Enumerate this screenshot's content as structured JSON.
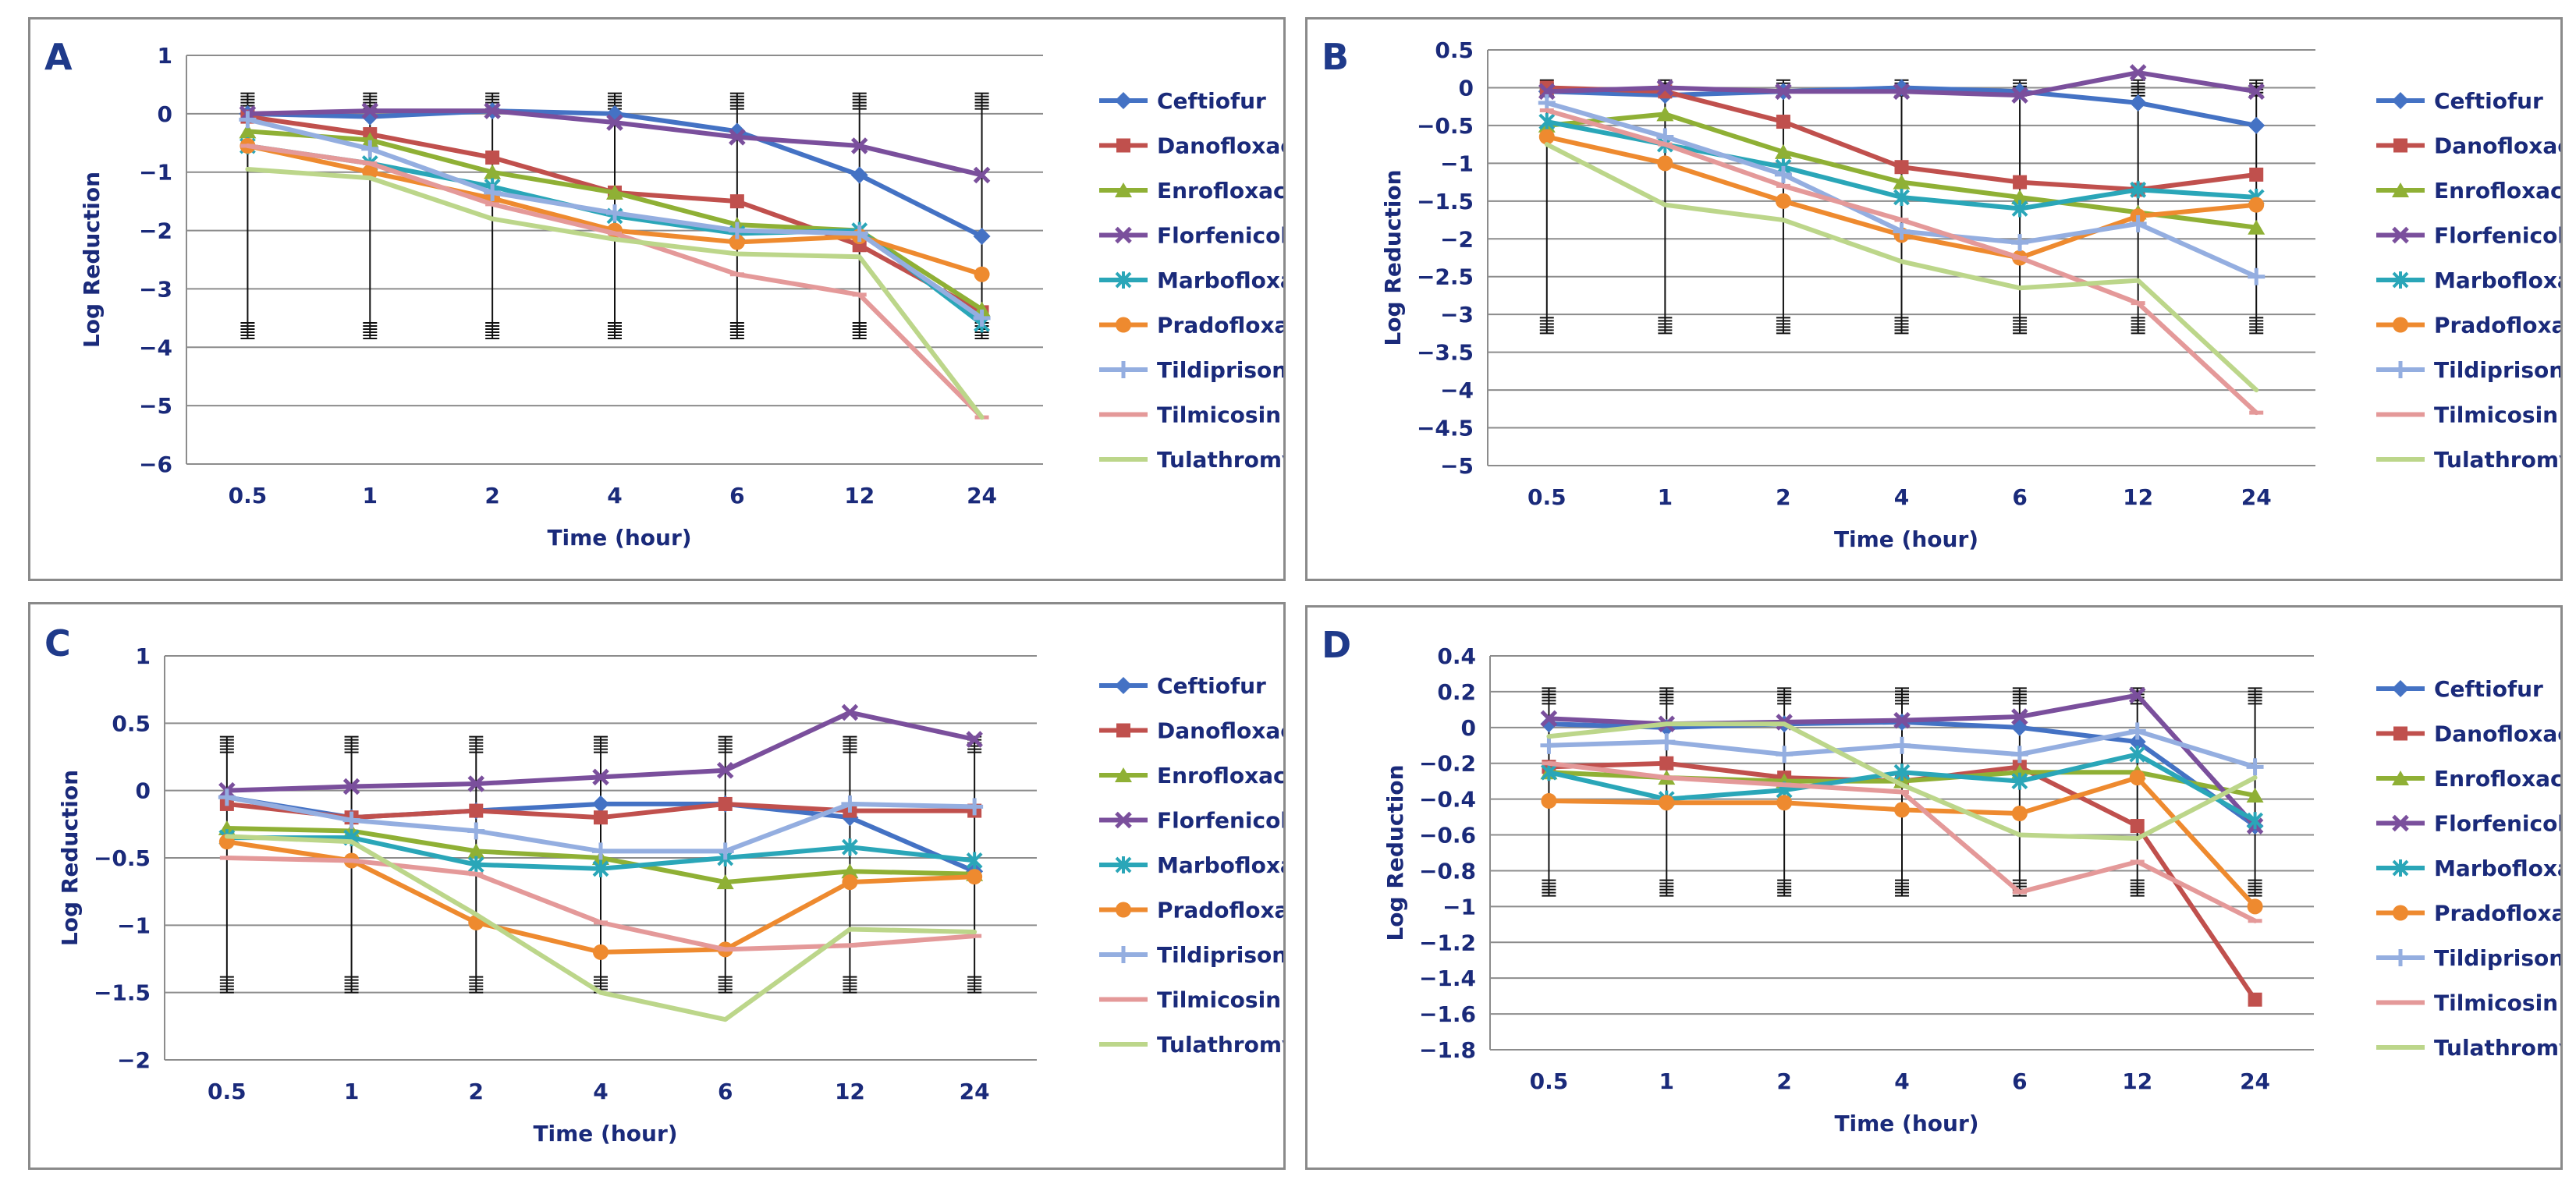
{
  "colors": {
    "Ceftiofur": "#4472c4",
    "Danofloxacin": "#c0504d",
    "Enrofloxacin": "#8fb035",
    "Florfenicol": "#7a4f9c",
    "Marbofloxacin": "#2aa6b8",
    "Pradofloxacin": "#ee8a2f",
    "Tildiprison": "#94aee0",
    "Tilmicosin": "#e49999",
    "Tulathromycin": "#bcd68a"
  },
  "markers": {
    "Ceftiofur": "diamond",
    "Danofloxacin": "square",
    "Enrofloxacin": "triangle",
    "Florfenicol": "x",
    "Marbofloxacin": "star",
    "Pradofloxacin": "circle",
    "Tildiprison": "plus",
    "Tilmicosin": "dash",
    "Tulathromycin": "none"
  },
  "chart_data": [
    {
      "panel": "A",
      "type": "line",
      "xlabel": "Time (hour)",
      "ylabel": "Log Reduction",
      "categories": [
        "0.5",
        "1",
        "2",
        "4",
        "6",
        "12",
        "24"
      ],
      "ylim": [
        -6,
        1
      ],
      "yticks": [
        1,
        0,
        -1,
        -2,
        -3,
        -4,
        -5,
        -6
      ],
      "ytick_labels": [
        "1",
        "0",
        "−1",
        "−2",
        "−3",
        "−4",
        "−5",
        "−6"
      ],
      "error_bar": {
        "upper": 0.35,
        "lower": -3.85
      },
      "series": [
        {
          "name": "Ceftiofur",
          "values": [
            0.0,
            -0.05,
            0.05,
            0.0,
            -0.3,
            -1.05,
            -2.1
          ]
        },
        {
          "name": "Danofloxacin",
          "values": [
            -0.05,
            -0.35,
            -0.75,
            -1.35,
            -1.5,
            -2.25,
            -3.4
          ]
        },
        {
          "name": "Enrofloxacin",
          "values": [
            -0.3,
            -0.45,
            -1.0,
            -1.35,
            -1.9,
            -2.0,
            -3.35
          ]
        },
        {
          "name": "Florfenicol",
          "values": [
            0.0,
            0.05,
            0.05,
            -0.15,
            -0.4,
            -0.55,
            -1.05
          ]
        },
        {
          "name": "Marbofloxacin",
          "values": [
            -0.55,
            -0.85,
            -1.25,
            -1.75,
            -2.05,
            -2.0,
            -3.6
          ]
        },
        {
          "name": "Pradofloxacin",
          "values": [
            -0.55,
            -1.0,
            -1.45,
            -2.0,
            -2.2,
            -2.1,
            -2.75
          ]
        },
        {
          "name": "Tildiprison",
          "values": [
            -0.1,
            -0.6,
            -1.35,
            -1.7,
            -2.0,
            -2.05,
            -3.5
          ]
        },
        {
          "name": "Tilmicosin",
          "values": [
            -0.55,
            -0.85,
            -1.55,
            -2.05,
            -2.75,
            -3.1,
            -5.2
          ]
        },
        {
          "name": "Tulathromycin",
          "values": [
            -0.95,
            -1.1,
            -1.8,
            -2.15,
            -2.4,
            -2.45,
            -5.2
          ]
        }
      ]
    },
    {
      "panel": "B",
      "type": "line",
      "xlabel": "Time (hour)",
      "ylabel": "Log Reduction",
      "categories": [
        "0.5",
        "1",
        "2",
        "4",
        "6",
        "12",
        "24"
      ],
      "ylim": [
        -5,
        0.5
      ],
      "yticks": [
        0.5,
        0,
        -0.5,
        -1,
        -1.5,
        -2,
        -2.5,
        -3,
        -3.5,
        -4,
        -4.5,
        -5
      ],
      "ytick_labels": [
        "0.5",
        "0",
        "−0.5",
        "−1",
        "−1.5",
        "−2",
        "−2.5",
        "−3",
        "−3.5",
        "−4",
        "−4.5",
        "−5"
      ],
      "error_bar": {
        "upper": 0.1,
        "lower": -3.25
      },
      "series": [
        {
          "name": "Ceftiofur",
          "values": [
            -0.05,
            -0.1,
            -0.05,
            0.0,
            -0.05,
            -0.2,
            -0.5
          ]
        },
        {
          "name": "Danofloxacin",
          "values": [
            0.0,
            -0.05,
            -0.45,
            -1.05,
            -1.25,
            -1.35,
            -1.15
          ]
        },
        {
          "name": "Enrofloxacin",
          "values": [
            -0.5,
            -0.35,
            -0.85,
            -1.25,
            -1.45,
            -1.65,
            -1.85
          ]
        },
        {
          "name": "Florfenicol",
          "values": [
            -0.05,
            0.0,
            -0.05,
            -0.05,
            -0.1,
            0.2,
            -0.05
          ]
        },
        {
          "name": "Marbofloxacin",
          "values": [
            -0.45,
            -0.75,
            -1.05,
            -1.45,
            -1.6,
            -1.35,
            -1.45
          ]
        },
        {
          "name": "Pradofloxacin",
          "values": [
            -0.65,
            -1.0,
            -1.5,
            -1.95,
            -2.25,
            -1.7,
            -1.55
          ]
        },
        {
          "name": "Tildiprison",
          "values": [
            -0.2,
            -0.65,
            -1.15,
            -1.9,
            -2.05,
            -1.8,
            -2.5
          ]
        },
        {
          "name": "Tilmicosin",
          "values": [
            -0.3,
            -0.75,
            -1.3,
            -1.75,
            -2.25,
            -2.85,
            -4.3
          ]
        },
        {
          "name": "Tulathromycin",
          "values": [
            -0.75,
            -1.55,
            -1.75,
            -2.3,
            -2.65,
            -2.55,
            -4.0
          ]
        }
      ]
    },
    {
      "panel": "C",
      "type": "line",
      "xlabel": "Time (hour)",
      "ylabel": "Log Reduction",
      "categories": [
        "0.5",
        "1",
        "2",
        "4",
        "6",
        "12",
        "24"
      ],
      "ylim": [
        -2,
        1
      ],
      "yticks": [
        1,
        0.5,
        0,
        -0.5,
        -1,
        -1.5,
        -2
      ],
      "ytick_labels": [
        "1",
        "0.5",
        "0",
        "−0.5",
        "−1",
        "−1.5",
        "−2"
      ],
      "error_bar": {
        "upper": 0.4,
        "lower": -1.5
      },
      "series": [
        {
          "name": "Ceftiofur",
          "values": [
            -0.05,
            -0.2,
            -0.15,
            -0.1,
            -0.1,
            -0.2,
            -0.6
          ]
        },
        {
          "name": "Danofloxacin",
          "values": [
            -0.1,
            -0.2,
            -0.15,
            -0.2,
            -0.1,
            -0.15,
            -0.15
          ]
        },
        {
          "name": "Enrofloxacin",
          "values": [
            -0.28,
            -0.3,
            -0.45,
            -0.5,
            -0.68,
            -0.6,
            -0.62
          ]
        },
        {
          "name": "Florfenicol",
          "values": [
            0.0,
            0.03,
            0.05,
            0.1,
            0.15,
            0.58,
            0.38
          ]
        },
        {
          "name": "Marbofloxacin",
          "values": [
            -0.35,
            -0.35,
            -0.55,
            -0.58,
            -0.5,
            -0.42,
            -0.52
          ]
        },
        {
          "name": "Pradofloxacin",
          "values": [
            -0.38,
            -0.52,
            -0.98,
            -1.2,
            -1.18,
            -0.68,
            -0.64
          ]
        },
        {
          "name": "Tildiprison",
          "values": [
            -0.05,
            -0.22,
            -0.3,
            -0.45,
            -0.45,
            -0.1,
            -0.12
          ]
        },
        {
          "name": "Tilmicosin",
          "values": [
            -0.5,
            -0.52,
            -0.62,
            -0.98,
            -1.18,
            -1.15,
            -1.08
          ]
        },
        {
          "name": "Tulathromycin",
          "values": [
            -0.34,
            -0.38,
            -0.92,
            -1.5,
            -1.7,
            -1.03,
            -1.05
          ]
        }
      ]
    },
    {
      "panel": "D",
      "type": "line",
      "xlabel": "Time (hour)",
      "ylabel": "Log Reduction",
      "categories": [
        "0.5",
        "1",
        "2",
        "4",
        "6",
        "12",
        "24"
      ],
      "ylim": [
        -1.8,
        0.4
      ],
      "yticks": [
        0.4,
        0.2,
        0,
        -0.2,
        -0.4,
        -0.6,
        -0.8,
        -1,
        -1.2,
        -1.4,
        -1.6,
        -1.8
      ],
      "ytick_labels": [
        "0.4",
        "0.2",
        "0",
        "−0.2",
        "−0.4",
        "−0.6",
        "−0.8",
        "−1",
        "−1.2",
        "−1.4",
        "−1.6",
        "−1.8"
      ],
      "error_bar": {
        "upper": 0.22,
        "lower": -0.94
      },
      "series": [
        {
          "name": "Ceftiofur",
          "values": [
            0.02,
            0.0,
            0.02,
            0.03,
            0.0,
            -0.08,
            -0.55
          ]
        },
        {
          "name": "Danofloxacin",
          "values": [
            -0.22,
            -0.2,
            -0.28,
            -0.3,
            -0.22,
            -0.55,
            -1.52
          ]
        },
        {
          "name": "Enrofloxacin",
          "values": [
            -0.25,
            -0.28,
            -0.3,
            -0.3,
            -0.25,
            -0.25,
            -0.38
          ]
        },
        {
          "name": "Florfenicol",
          "values": [
            0.05,
            0.02,
            0.03,
            0.04,
            0.06,
            0.18,
            -0.55
          ]
        },
        {
          "name": "Marbofloxacin",
          "values": [
            -0.25,
            -0.4,
            -0.35,
            -0.25,
            -0.3,
            -0.15,
            -0.52
          ]
        },
        {
          "name": "Pradofloxacin",
          "values": [
            -0.41,
            -0.42,
            -0.42,
            -0.46,
            -0.48,
            -0.28,
            -1.0
          ]
        },
        {
          "name": "Tildiprison",
          "values": [
            -0.1,
            -0.08,
            -0.15,
            -0.1,
            -0.15,
            -0.02,
            -0.22
          ]
        },
        {
          "name": "Tilmicosin",
          "values": [
            -0.2,
            -0.28,
            -0.32,
            -0.36,
            -0.92,
            -0.75,
            -1.08
          ]
        },
        {
          "name": "Tulathromycin",
          "values": [
            -0.05,
            0.02,
            0.02,
            -0.32,
            -0.6,
            -0.62,
            -0.28
          ]
        }
      ]
    }
  ]
}
